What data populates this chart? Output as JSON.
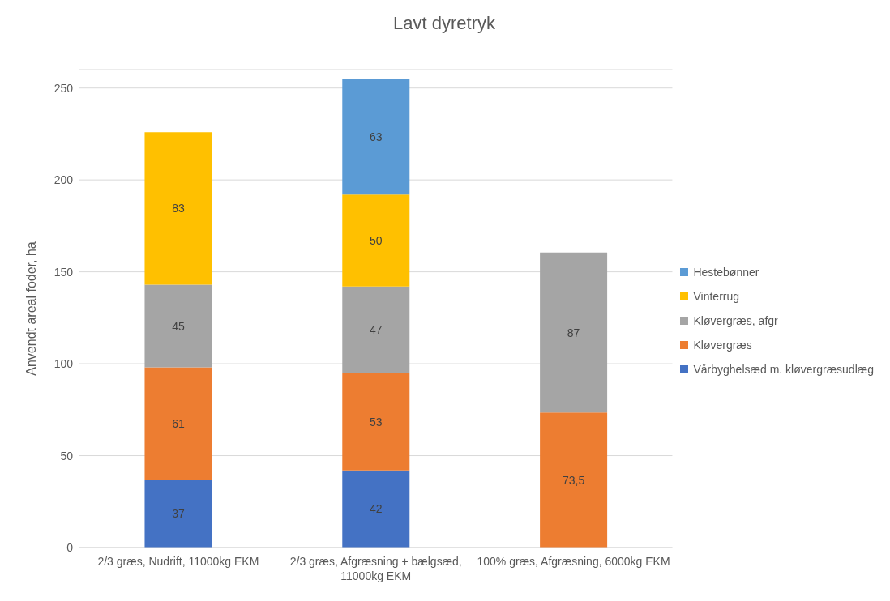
{
  "chart_data": {
    "type": "bar",
    "title": "Lavt dyretryk",
    "ylabel": "Anvendt areal foder, ha",
    "categories": [
      "2/3 græs, Nudrift, 11000kg EKM",
      "2/3 græs, Afgræsning + bælgsæd, 11000kg EKM",
      "100% græs, Afgræsning, 6000kg EKM"
    ],
    "stacked": true,
    "ylim": [
      0,
      260
    ],
    "yticks": [
      0,
      50,
      100,
      150,
      200,
      250
    ],
    "grid": "y",
    "legend": "right",
    "series": [
      {
        "name": "Vårbyghelsæd m. kløvergræsudlæg",
        "color": "#4472c4",
        "values": [
          37,
          42,
          null
        ],
        "value_labels": [
          "37",
          "42",
          null
        ]
      },
      {
        "name": "Kløvergræs",
        "color": "#ed7d31",
        "values": [
          61,
          53,
          73.5
        ],
        "value_labels": [
          "61",
          "53",
          "73,5"
        ]
      },
      {
        "name": "Kløvergræs, afgr",
        "color": "#a5a5a5",
        "values": [
          45,
          47,
          87
        ],
        "value_labels": [
          "45",
          "47",
          "87"
        ]
      },
      {
        "name": "Vinterrug",
        "color": "#ffc000",
        "values": [
          83,
          50,
          null
        ],
        "value_labels": [
          "83",
          "50",
          null
        ]
      },
      {
        "name": "Hestebønner",
        "color": "#5b9bd5",
        "values": [
          null,
          63,
          null
        ],
        "value_labels": [
          null,
          "63",
          null
        ]
      }
    ]
  }
}
